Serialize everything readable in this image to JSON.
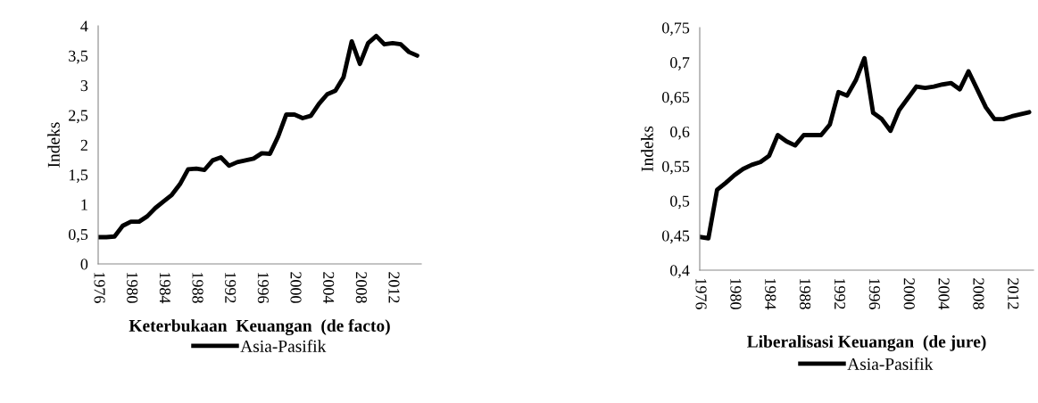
{
  "chart_data": [
    {
      "type": "line",
      "title": "Keterbukaan  Keuangan  (de facto)",
      "ylabel": "Indeks",
      "legend": "bottom",
      "grid": false,
      "marker": "none",
      "line_style": "solid",
      "categories": [
        "1976",
        null,
        null,
        null,
        "1980",
        null,
        null,
        null,
        "1984",
        null,
        null,
        null,
        "1988",
        null,
        null,
        null,
        "1992",
        null,
        null,
        null,
        "1996",
        null,
        null,
        null,
        "2000",
        null,
        null,
        null,
        "2004",
        null,
        null,
        null,
        "2008",
        null,
        null,
        null,
        "2012",
        null,
        null,
        null
      ],
      "ylim": [
        0,
        4
      ],
      "yticks": [
        0,
        {
          "value": 0.5,
          "label": "0,5"
        },
        1,
        {
          "value": 1.5,
          "label": "1,5"
        },
        2,
        {
          "value": 2.5,
          "label": "2,5"
        },
        3,
        {
          "value": 3.5,
          "label": "3,5"
        },
        4
      ],
      "series": [
        {
          "name": "Asia-Pasifik",
          "color": "#000000",
          "values": [
            0.45,
            0.45,
            0.46,
            0.64,
            0.71,
            0.71,
            0.8,
            0.94,
            1.05,
            1.16,
            1.34,
            1.59,
            1.6,
            1.58,
            1.74,
            1.79,
            1.65,
            1.71,
            1.74,
            1.77,
            1.86,
            1.85,
            2.14,
            2.51,
            2.51,
            2.45,
            2.49,
            2.69,
            2.85,
            2.91,
            3.14,
            3.74,
            3.36,
            3.71,
            3.83,
            3.69,
            3.71,
            3.69,
            3.56,
            3.5
          ]
        }
      ]
    },
    {
      "type": "line",
      "title": "Liberalisasi Keuangan  (de jure)",
      "ylabel": "Indeks",
      "legend": "bottom",
      "grid": false,
      "marker": "none",
      "line_style": "solid",
      "categories": [
        "1976",
        null,
        null,
        null,
        "1980",
        null,
        null,
        null,
        "1984",
        null,
        null,
        null,
        "1988",
        null,
        null,
        null,
        "1992",
        null,
        null,
        null,
        "1996",
        null,
        null,
        null,
        "2000",
        null,
        null,
        null,
        "2004",
        null,
        null,
        null,
        "2008",
        null,
        null,
        null,
        "2012",
        null,
        null
      ],
      "ylim": [
        0.4,
        0.75
      ],
      "yticks": [
        {
          "value": 0.4,
          "label": "0,4"
        },
        {
          "value": 0.45,
          "label": "0,45"
        },
        {
          "value": 0.5,
          "label": "0,5"
        },
        {
          "value": 0.55,
          "label": "0,55"
        },
        {
          "value": 0.6,
          "label": "0,6"
        },
        {
          "value": 0.65,
          "label": "0,65"
        },
        {
          "value": 0.7,
          "label": "0,7"
        },
        {
          "value": 0.75,
          "label": "0,75"
        }
      ],
      "series": [
        {
          "name": "Asia-Pasifik",
          "color": "#000000",
          "values": [
            0.448,
            0.446,
            0.516,
            0.526,
            0.537,
            0.546,
            0.552,
            0.556,
            0.565,
            0.595,
            0.586,
            0.58,
            0.595,
            0.595,
            0.595,
            0.61,
            0.657,
            0.652,
            0.674,
            0.706,
            0.627,
            0.618,
            0.601,
            0.631,
            0.648,
            0.665,
            0.663,
            0.665,
            0.668,
            0.67,
            0.661,
            0.687,
            0.661,
            0.635,
            0.618,
            0.618,
            0.622,
            0.625,
            0.628
          ]
        }
      ]
    }
  ]
}
